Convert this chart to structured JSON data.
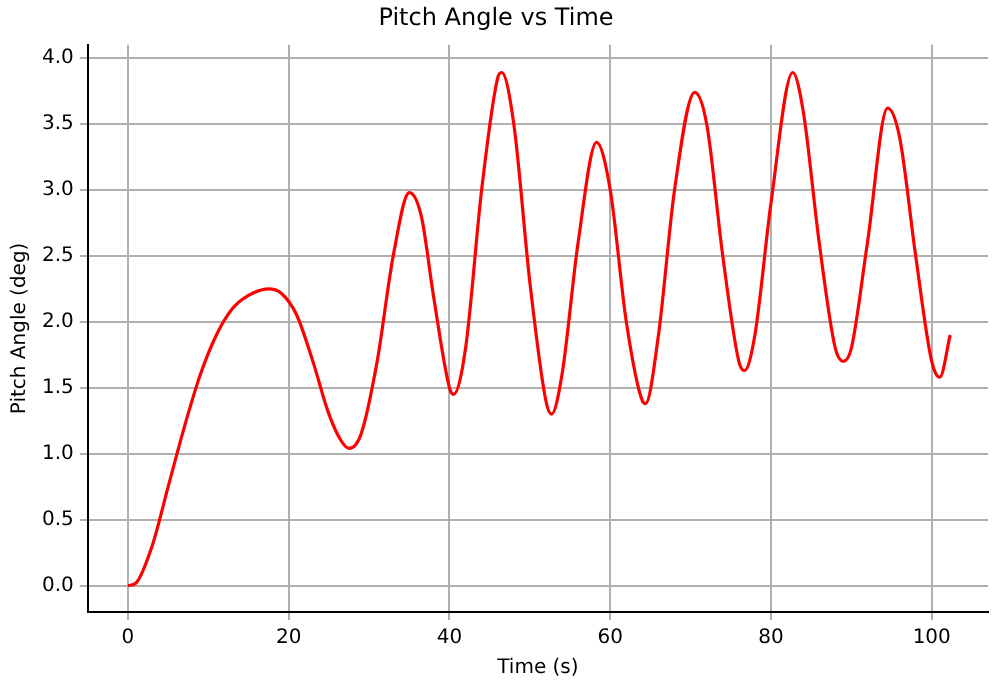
{
  "chart_data": {
    "type": "line",
    "title": "Pitch Angle vs Time",
    "xlabel": "Time (s)",
    "ylabel": "Pitch Angle (deg)",
    "x": [
      0,
      1,
      3,
      5,
      7,
      9,
      11,
      13,
      15,
      17.5,
      19,
      21,
      23,
      25,
      26.5,
      27.5,
      29,
      31,
      33,
      35,
      36.5,
      38,
      40,
      40.5,
      42,
      44,
      46,
      46.5,
      48,
      50,
      52,
      52.7,
      54,
      56,
      58.3,
      60,
      62,
      64,
      64.4,
      66,
      68,
      70.5,
      72,
      74,
      76,
      76.7,
      78,
      80,
      82.7,
      84,
      86,
      88,
      89,
      90,
      92,
      94.5,
      96,
      98,
      100,
      101,
      102.3
    ],
    "series": [
      {
        "color": "#ff0000",
        "values": [
          0,
          0.02,
          0.3,
          0.75,
          1.2,
          1.6,
          1.9,
          2.1,
          2.2,
          2.25,
          2.22,
          2.05,
          1.7,
          1.3,
          1.1,
          1.04,
          1.15,
          1.7,
          2.5,
          2.98,
          2.8,
          2.2,
          1.5,
          1.45,
          1.8,
          3.0,
          3.85,
          3.89,
          3.5,
          2.3,
          1.4,
          1.3,
          1.6,
          2.6,
          3.36,
          3.0,
          2.0,
          1.4,
          1.38,
          1.9,
          3.0,
          3.74,
          3.5,
          2.5,
          1.7,
          1.63,
          1.9,
          2.9,
          3.89,
          3.6,
          2.6,
          1.8,
          1.7,
          1.8,
          2.6,
          3.62,
          3.4,
          2.5,
          1.7,
          1.58,
          1.9
        ]
      }
    ],
    "xlim": [
      -5,
      107
    ],
    "xticks": [
      0,
      20,
      40,
      60,
      80,
      100
    ],
    "ylim": [
      -0.2,
      4.1
    ],
    "yticks": [
      {
        "value": 0,
        "label": "0.0"
      },
      {
        "value": 0.5,
        "label": "0.5"
      },
      {
        "value": 1,
        "label": "1.0"
      },
      {
        "value": 1.5,
        "label": "1.5"
      },
      {
        "value": 2,
        "label": "2.0"
      },
      {
        "value": 2.5,
        "label": "2.5"
      },
      {
        "value": 3,
        "label": "3.0"
      },
      {
        "value": 3.5,
        "label": "3.5"
      },
      {
        "value": 4,
        "label": "4.0"
      }
    ],
    "grid": true,
    "legend": false,
    "marker": "none",
    "line_style": "solid"
  }
}
